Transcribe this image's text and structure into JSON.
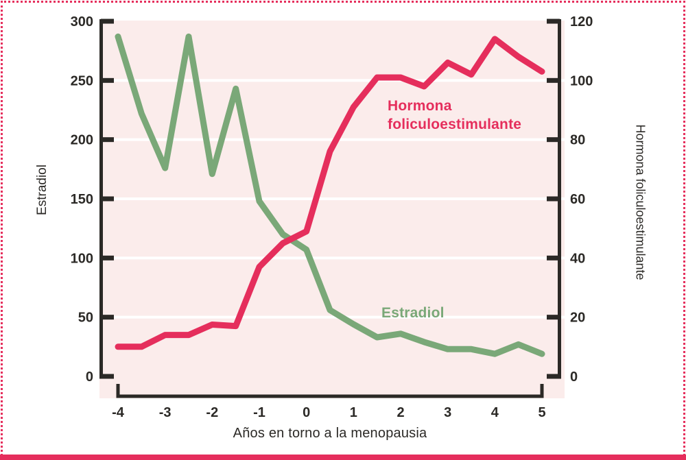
{
  "theme": {
    "accent": "#e52e5c",
    "green": "#7aa878",
    "ink": "#2b2926",
    "plot_bg": "#fbeceb",
    "grid": "#ffffff",
    "page_bg": "#ffffff"
  },
  "chart_data": {
    "type": "line",
    "title": "",
    "xlabel": "Años en torno a la menopausia",
    "x": [
      -4,
      -3.5,
      -3,
      -2.5,
      -2,
      -1.5,
      -1,
      -0.5,
      0,
      0.5,
      1,
      1.5,
      2,
      2.5,
      3,
      3.5,
      4,
      4.5,
      5
    ],
    "x_ticks": [
      -4,
      -3,
      -2,
      -1,
      0,
      1,
      2,
      3,
      4,
      5
    ],
    "y_left": {
      "label": "Estradiol",
      "min": 0,
      "max": 300,
      "ticks": [
        0,
        50,
        100,
        150,
        200,
        250,
        300
      ]
    },
    "y_right": {
      "label": "Hormona foliculoestimulante",
      "min": 0,
      "max": 120,
      "ticks": [
        0,
        20,
        40,
        60,
        80,
        100,
        120
      ]
    },
    "grid": {
      "horizontal": true,
      "color": "white",
      "at_left_values": [
        50,
        100,
        150,
        200,
        250
      ]
    },
    "legend_position": "inline-labels",
    "series_labels": {
      "fsh": "Hormona\nfoliculoestimulante",
      "estradiol": "Estradiol"
    },
    "series": [
      {
        "name": "Estradiol",
        "axis": "left",
        "color": "#7aa878",
        "values": [
          287,
          222,
          176,
          287,
          171,
          243,
          148,
          120,
          107,
          56,
          44,
          33,
          36,
          29,
          23,
          23,
          19,
          27,
          19
        ]
      },
      {
        "name": "Hormona foliculoestimulante",
        "axis": "right",
        "color": "#e52e5c",
        "values": [
          10,
          10,
          14,
          14,
          17.5,
          17,
          37,
          45,
          49,
          76,
          91,
          101,
          101,
          98,
          106,
          102,
          114,
          108,
          103
        ]
      }
    ]
  }
}
